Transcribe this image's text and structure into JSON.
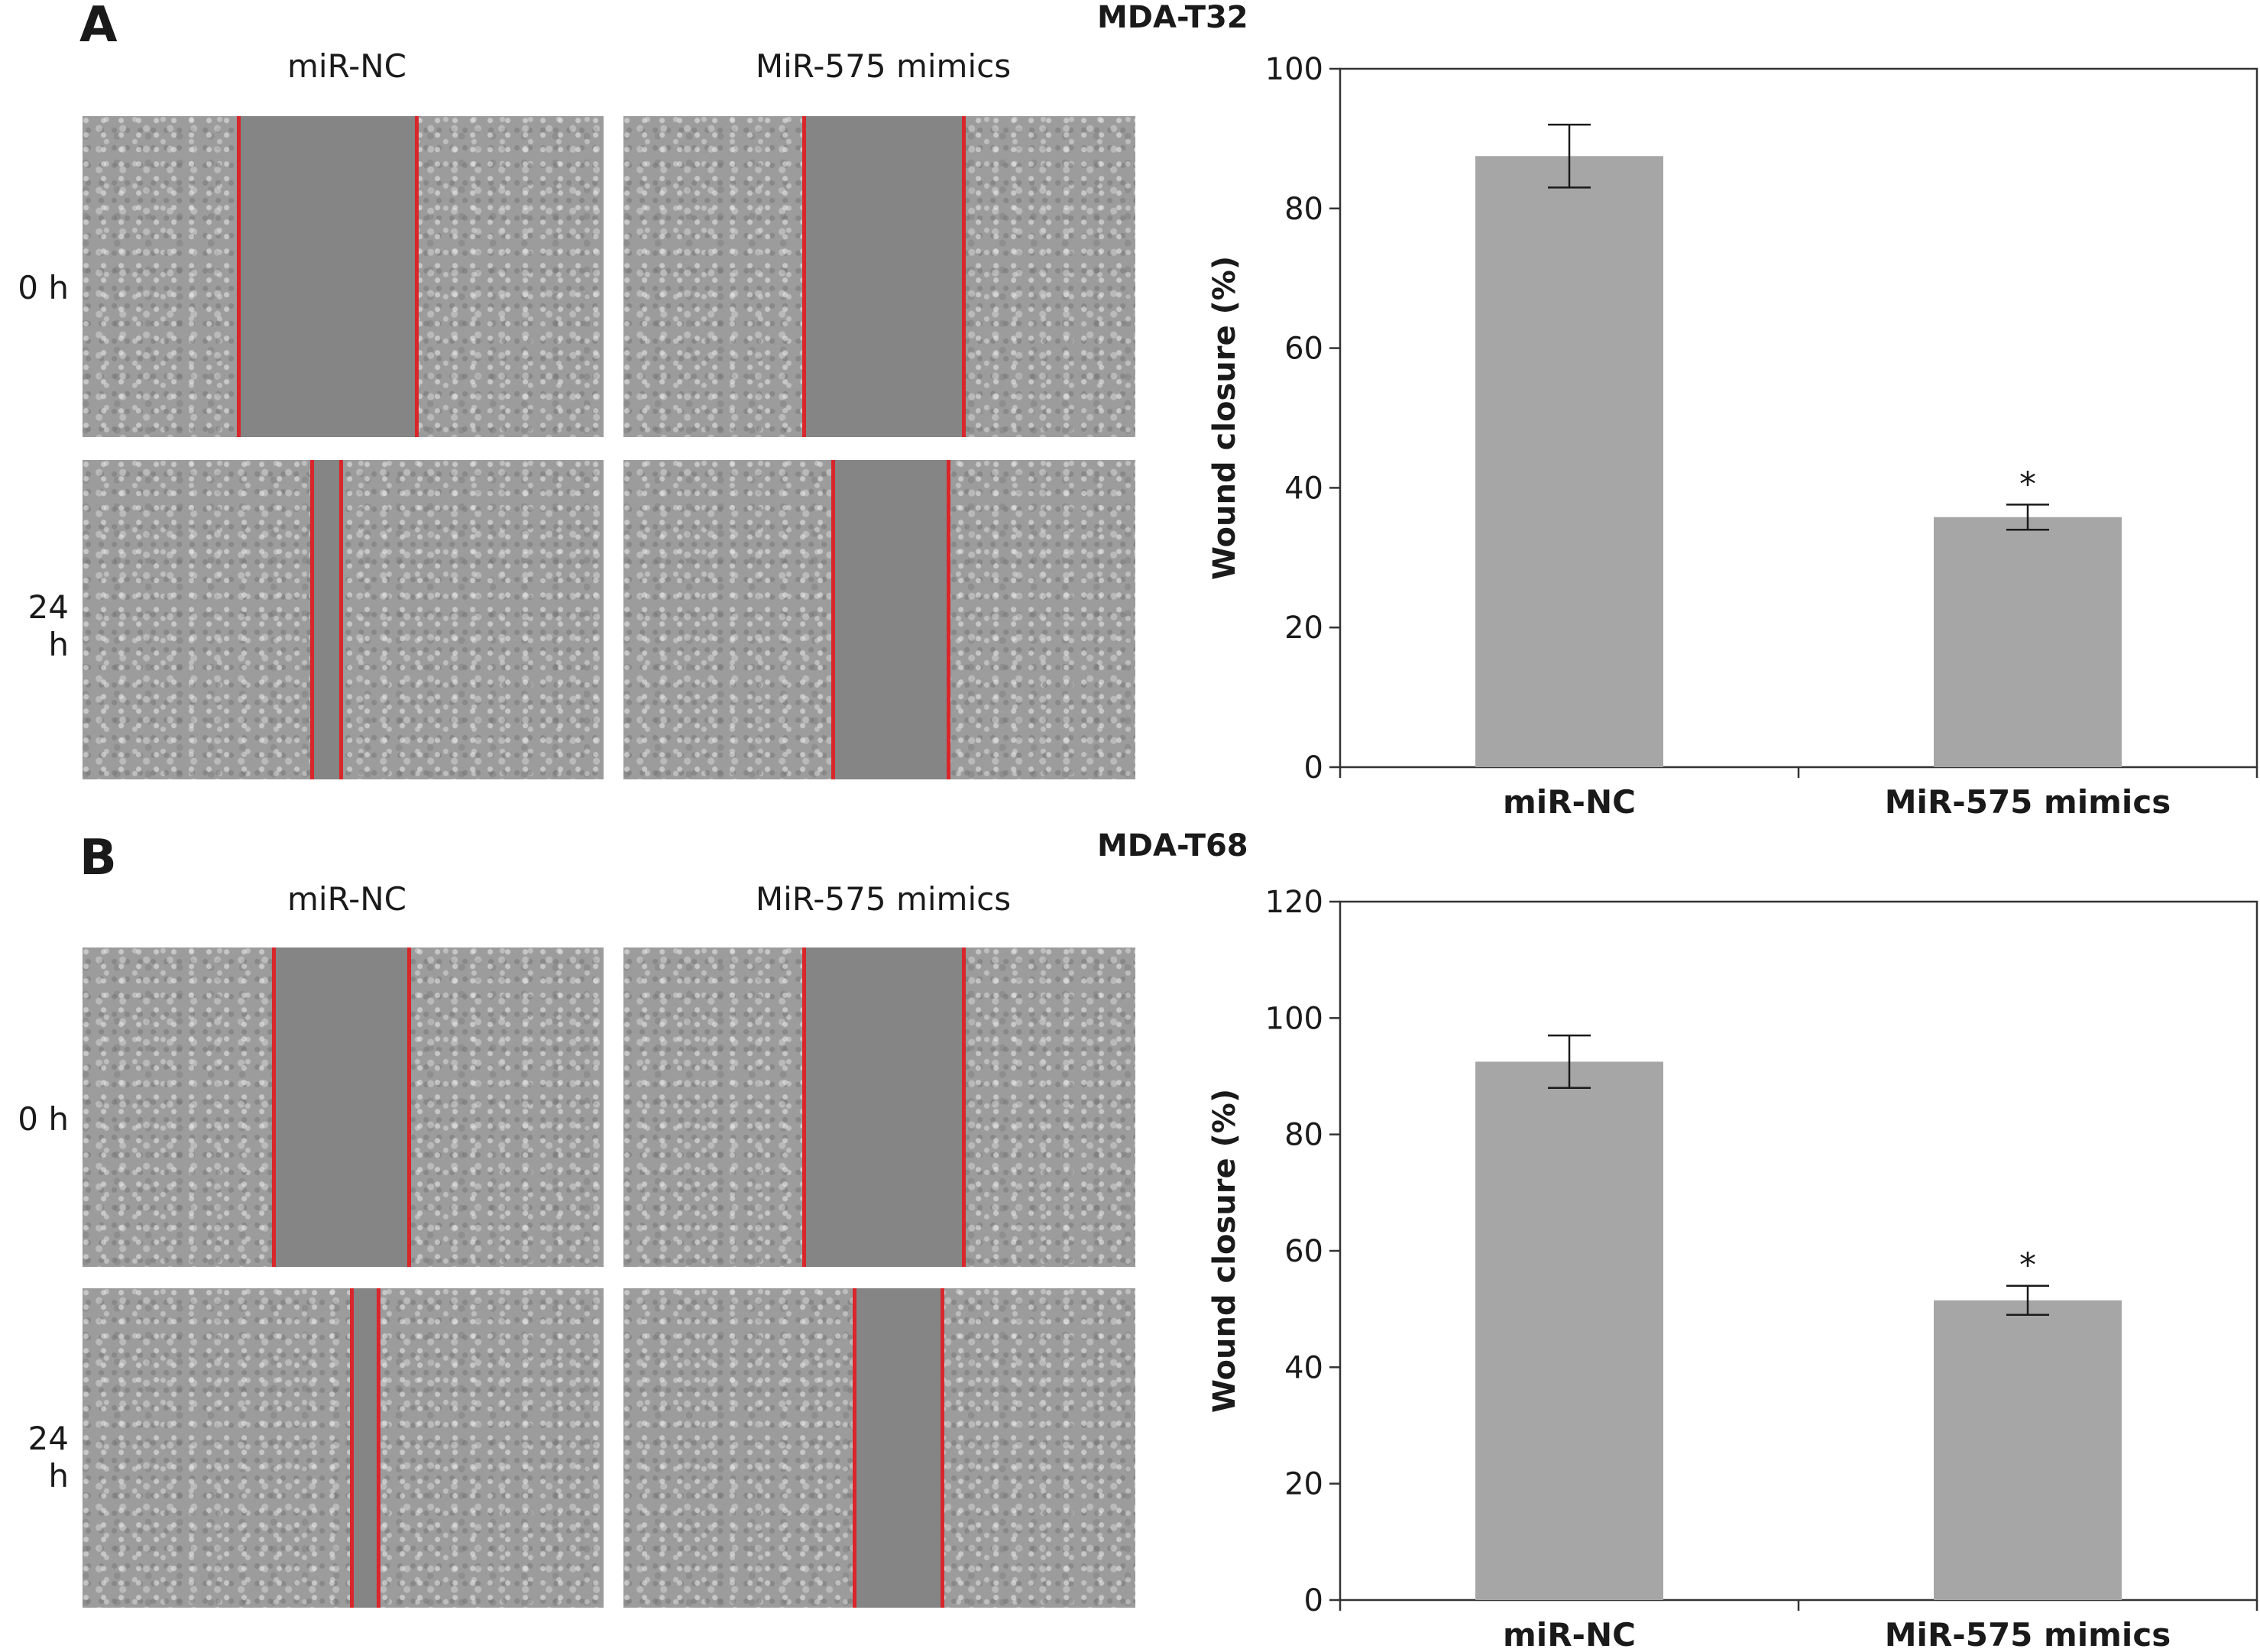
{
  "panels": [
    {
      "letter": "A",
      "col_labels": [
        "miR-NC",
        "MiR-575 mimics"
      ],
      "row_labels": [
        "0 h",
        "24 h"
      ]
    },
    {
      "letter": "B",
      "col_labels": [
        "miR-NC",
        "MiR-575 mimics"
      ],
      "row_labels": [
        "0 h",
        "24 h"
      ]
    }
  ],
  "chart_data": [
    {
      "type": "bar",
      "title": "MDA-T32",
      "categories": [
        "miR-NC",
        "MiR-575 mimics"
      ],
      "values": [
        87.5,
        35.8
      ],
      "errors": [
        4.5,
        1.8
      ],
      "significance": [
        "",
        "*"
      ],
      "xlabel": "",
      "ylabel": "Wound closure (%)",
      "ylim": [
        0,
        100
      ],
      "yticks": [
        0,
        20,
        40,
        60,
        80,
        100
      ],
      "bar_color": "#a6a6a6"
    },
    {
      "type": "bar",
      "title": "MDA-T68",
      "categories": [
        "miR-NC",
        "MiR-575 mimics"
      ],
      "values": [
        92.5,
        51.5
      ],
      "errors": [
        4.5,
        2.5
      ],
      "significance": [
        "",
        "*"
      ],
      "xlabel": "",
      "ylabel": "Wound closure (%)",
      "ylim": [
        0,
        120
      ],
      "yticks": [
        0,
        20,
        40,
        60,
        80,
        100,
        120
      ],
      "bar_color": "#a6a6a6"
    }
  ]
}
